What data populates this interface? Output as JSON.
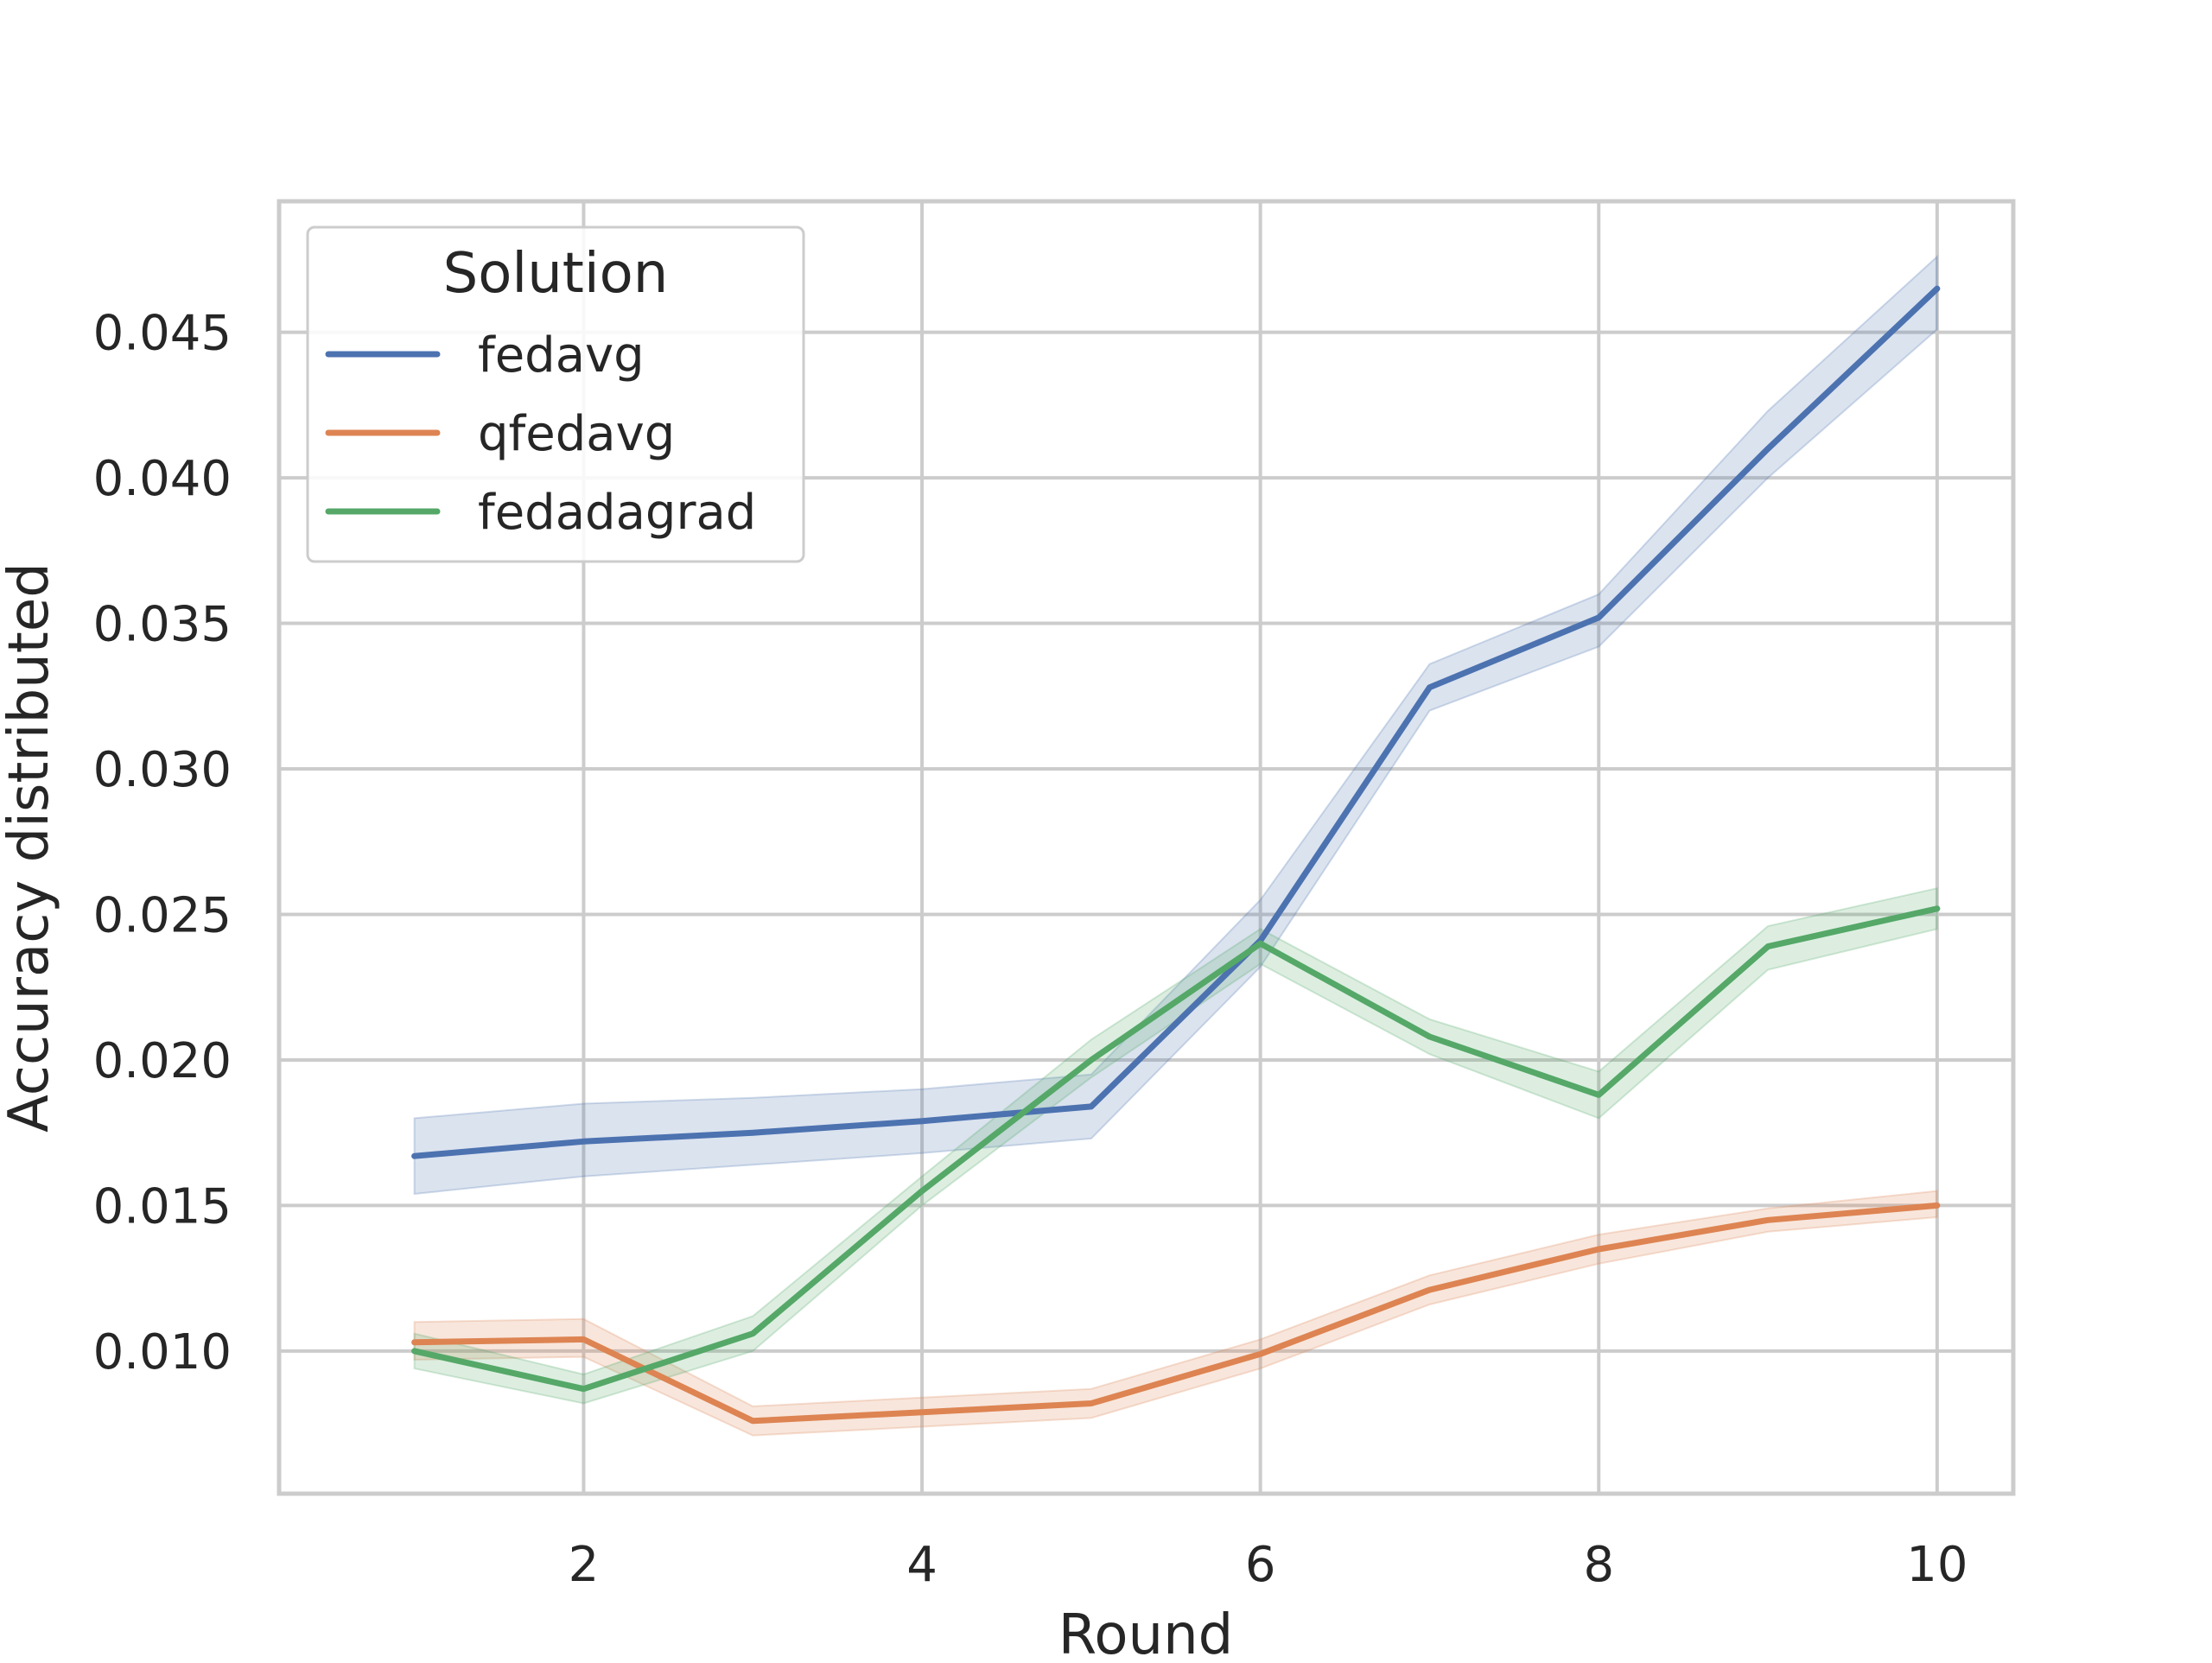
{
  "chart_data": {
    "type": "line",
    "title": "",
    "xlabel": "Round",
    "ylabel": "Accuracy distributed",
    "x": [
      1,
      2,
      3,
      4,
      5,
      6,
      7,
      8,
      9,
      10
    ],
    "xlim": [
      0.2,
      10.45
    ],
    "ylim": [
      0.0051,
      0.0495
    ],
    "xticks": [
      2,
      4,
      6,
      8,
      10
    ],
    "xtick_labels": [
      "2",
      "4",
      "6",
      "8",
      "10"
    ],
    "yticks": [
      0.01,
      0.015,
      0.02,
      0.025,
      0.03,
      0.035,
      0.04,
      0.045
    ],
    "ytick_labels": [
      "0.010",
      "0.015",
      "0.020",
      "0.025",
      "0.030",
      "0.035",
      "0.040",
      "0.045"
    ],
    "grid": true,
    "legend": {
      "title": "Solution",
      "placement": "top-left"
    },
    "series": [
      {
        "name": "fedavg",
        "color": "#4c72b0",
        "values": [
          0.0167,
          0.0172,
          0.0175,
          0.0179,
          0.0184,
          0.0241,
          0.0328,
          0.0352,
          0.041,
          0.0465
        ],
        "lower": [
          0.0154,
          0.016,
          0.0164,
          0.0168,
          0.0173,
          0.0232,
          0.032,
          0.0342,
          0.04,
          0.0451
        ],
        "upper": [
          0.018,
          0.0185,
          0.0187,
          0.019,
          0.0195,
          0.0255,
          0.0336,
          0.036,
          0.0423,
          0.0476
        ]
      },
      {
        "name": "qfedavg",
        "color": "#dd8452",
        "values": [
          0.0103,
          0.0104,
          0.0076,
          0.0079,
          0.0082,
          0.0099,
          0.0121,
          0.0135,
          0.0145,
          0.015
        ],
        "lower": [
          0.0097,
          0.0098,
          0.0071,
          0.0074,
          0.0077,
          0.0094,
          0.0116,
          0.013,
          0.0141,
          0.0146
        ],
        "upper": [
          0.011,
          0.0111,
          0.0081,
          0.0084,
          0.0087,
          0.0104,
          0.0126,
          0.014,
          0.0149,
          0.0155
        ]
      },
      {
        "name": "fedadagrad",
        "color": "#55a868",
        "values": [
          0.01,
          0.0087,
          0.0106,
          0.0155,
          0.02,
          0.024,
          0.0208,
          0.0188,
          0.0239,
          0.0252
        ],
        "lower": [
          0.0094,
          0.0082,
          0.01,
          0.015,
          0.0194,
          0.0233,
          0.0202,
          0.018,
          0.0231,
          0.0245
        ],
        "upper": [
          0.0106,
          0.0092,
          0.0112,
          0.016,
          0.0207,
          0.0245,
          0.0214,
          0.0196,
          0.0246,
          0.0259
        ]
      }
    ]
  }
}
